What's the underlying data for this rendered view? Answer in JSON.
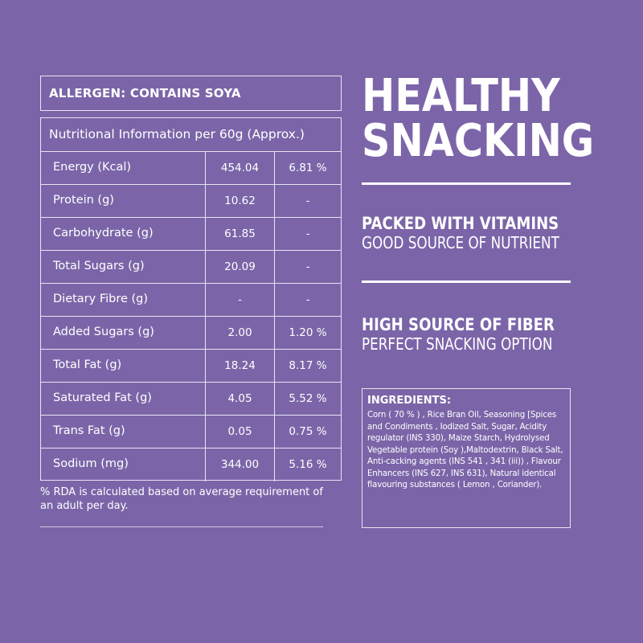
{
  "allergen": "ALLERGEN: CONTAINS SOYA",
  "nutrition": {
    "header": "Nutritional Information per 60g (Approx.)",
    "rows": [
      {
        "name": "Energy (Kcal)",
        "value": "454.04",
        "rda": "6.81 %"
      },
      {
        "name": "Protein (g)",
        "value": "10.62",
        "rda": "-"
      },
      {
        "name": "Carbohydrate (g)",
        "value": "61.85",
        "rda": "-"
      },
      {
        "name": "Total Sugars (g)",
        "value": "20.09",
        "rda": "-"
      },
      {
        "name": "Dietary Fibre (g)",
        "value": "-",
        "rda": "-"
      },
      {
        "name": "Added Sugars (g)",
        "value": "2.00",
        "rda": "1.20 %"
      },
      {
        "name": "Total Fat (g)",
        "value": "18.24",
        "rda": "8.17 %"
      },
      {
        "name": "Saturated Fat (g)",
        "value": "4.05",
        "rda": "5.52 %"
      },
      {
        "name": "Trans Fat (g)",
        "value": "0.05",
        "rda": "0.75 %"
      },
      {
        "name": "Sodium (mg)",
        "value": "344.00",
        "rda": "5.16 %"
      }
    ],
    "footnote": "% RDA is calculated based on average requirement of an adult per day."
  },
  "headline": {
    "line1": "HEALTHY",
    "line2": "SNACKING"
  },
  "benefits": [
    {
      "title": "PACKED WITH VITAMINS",
      "subtitle": "GOOD SOURCE OF NUTRIENT"
    },
    {
      "title": "HIGH SOURCE OF FIBER",
      "subtitle": "PERFECT SNACKING OPTION"
    }
  ],
  "ingredients": {
    "title": "INGREDIENTS:",
    "text": "Corn ( 70 % ) , Rice Bran Oil, Seasoning [Spices and Condiments , Iodized Salt, Sugar, Acidity regulator (INS 330), Maize Starch, Hydrolysed Vegetable protein (Soy ),Maltodextrin, Black Salt, Anti-cacking agents (INS 541 , 341 (iii)) , Flavour Enhancers (INS 627, INS 631), Natural identical flavouring substances ( Lemon , Coriander)."
  },
  "colors": {
    "background": "#7b65a8",
    "text": "#ffffff",
    "border": "#e9e4f2"
  }
}
